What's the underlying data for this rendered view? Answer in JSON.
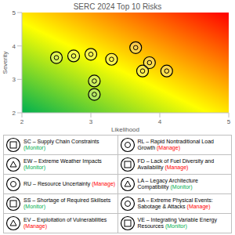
{
  "chart_data": {
    "type": "scatter",
    "title": "SERC 2024 Top 10 Risks",
    "x_label": "Likelihood",
    "y_label": "Severity",
    "x": [
      2.5,
      2.75,
      3.0,
      3.3,
      3.65,
      3.85,
      3.75,
      4.1,
      3.05,
      3.05
    ],
    "y": [
      3.65,
      3.7,
      3.75,
      3.6,
      3.95,
      3.5,
      3.25,
      3.25,
      2.95,
      2.55
    ],
    "xlim": [
      2,
      5
    ],
    "ylim": [
      2,
      5
    ],
    "xticks": [
      2,
      3,
      4,
      5
    ],
    "yticks": [
      2,
      3,
      4,
      5
    ],
    "grid": false,
    "color": "#000000",
    "marker": "circle"
  },
  "table": {
    "rows": [
      {
        "label": "SC – Supply Chain Constraints",
        "status": "(Monitor)",
        "color": "#00b050"
      },
      {
        "label": "EW – Extreme Weather Impacts",
        "status": "(Monitor)",
        "color": "#00b050"
      },
      {
        "label": "RU – Resource Uncertainty",
        "status": "(Manage)",
        "color": "#ff0000"
      },
      {
        "label": "SS – Shortage of Required Skillsets",
        "status": "(Monitor)",
        "color": "#00b050"
      },
      {
        "label": "EV – Exploitation of Vulnerabilities",
        "status": "(Manage)",
        "color": "#ff0000"
      },
      {
        "label": "RL – Rapid Nontraditional Load Growth",
        "status": "(Manage)",
        "color": "#ff0000"
      },
      {
        "label": "FD – Lack of Fuel Diversity and Availability",
        "status": "(Manage)",
        "color": "#ff0000"
      },
      {
        "label": "LA – Legacy Architecture Compatibility",
        "status": "(Monitor)",
        "color": "#00b050"
      },
      {
        "label": "SA – Extreme Physical Events: Sabotage & Attacks",
        "status": "(Manage)",
        "color": "#ff0000"
      },
      {
        "label": "VE – Integrating Variable Energy Resources",
        "status": "(Monitor)",
        "color": "#00b050"
      }
    ]
  }
}
